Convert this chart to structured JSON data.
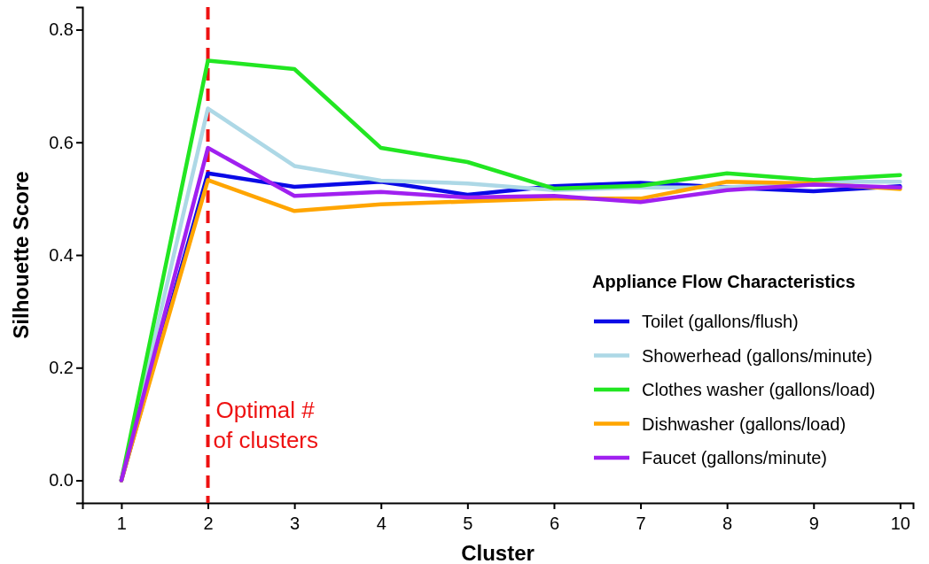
{
  "chart_data": {
    "type": "line",
    "xlabel": "Cluster",
    "ylabel": "Silhouette Score",
    "legend_title": "Appliance Flow Characteristics",
    "legend": "bottom right",
    "grid": false,
    "line_style": "solid",
    "x": [
      1,
      2,
      3,
      4,
      5,
      6,
      7,
      8,
      9,
      10
    ],
    "xlim": [
      0.55,
      10.15
    ],
    "xticks": [
      1,
      2,
      3,
      4,
      5,
      6,
      7,
      8,
      9,
      10
    ],
    "ylim": [
      -0.04,
      0.84
    ],
    "yticks": [
      {
        "value": 0,
        "label": "0.0"
      },
      0.2,
      0.4,
      0.6,
      0.8
    ],
    "series": [
      {
        "name": "Toilet (gallons/flush)",
        "color": "#0a0ae6",
        "values": [
          0,
          0.545,
          0.521,
          0.53,
          0.507,
          0.522,
          0.528,
          0.52,
          0.513,
          0.522
        ]
      },
      {
        "name": "Showerhead (gallons/minute)",
        "color": "#add8e6",
        "values": [
          0,
          0.66,
          0.558,
          0.532,
          0.527,
          0.515,
          0.52,
          0.52,
          0.53,
          0.53
        ]
      },
      {
        "name": "Clothes washer (gallons/load)",
        "color": "#22e622",
        "values": [
          0,
          0.745,
          0.73,
          0.59,
          0.565,
          0.518,
          0.523,
          0.545,
          0.533,
          0.542
        ]
      },
      {
        "name": "Dishwasher (gallons/load)",
        "color": "#ffa500",
        "values": [
          0,
          0.533,
          0.478,
          0.49,
          0.495,
          0.5,
          0.5,
          0.53,
          0.527,
          0.517
        ]
      },
      {
        "name": "Faucet (gallons/minute)",
        "color": "#a020f0",
        "values": [
          0,
          0.59,
          0.505,
          0.512,
          0.502,
          0.505,
          0.494,
          0.515,
          0.525,
          0.52
        ]
      }
    ],
    "ref_lines": [
      {
        "axis": "x",
        "value": 2,
        "label": "Optimal # of clusters",
        "color": "#ee1111",
        "line_style": "dashed"
      }
    ]
  }
}
